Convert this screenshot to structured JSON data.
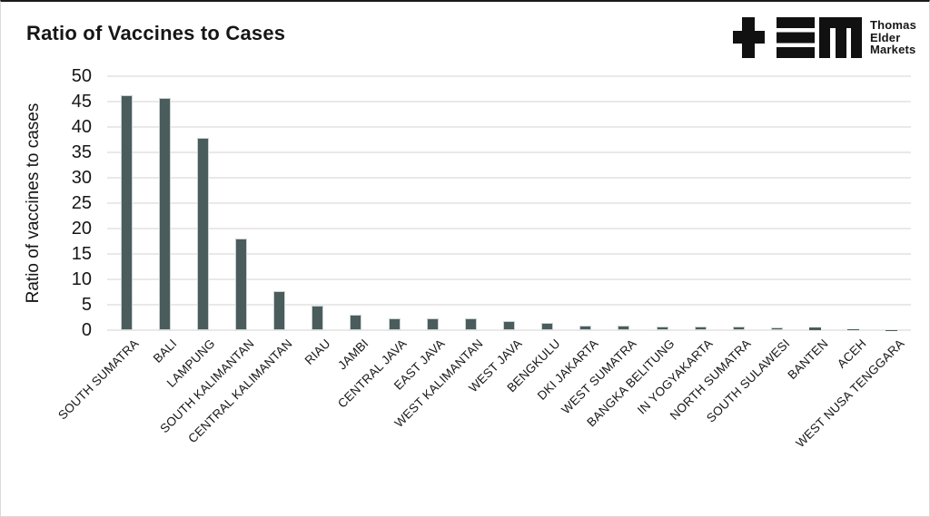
{
  "header": {
    "title": "Ratio of Vaccines to Cases"
  },
  "logo": {
    "name": "Thomas Elder Markets",
    "lines": [
      "Thomas",
      "Elder",
      "Markets"
    ]
  },
  "colors": {
    "bar": "#4a5c5b",
    "bar_edge": "#c9d2d1",
    "grid": "#e9e9e9",
    "text": "#161616"
  },
  "chart_data": {
    "type": "bar",
    "title": "Ratio of Vaccines to Cases",
    "xlabel": "",
    "ylabel": "Ratio of vaccines to cases",
    "ylim": [
      0,
      50
    ],
    "yticks": [
      0,
      5,
      10,
      15,
      20,
      25,
      30,
      35,
      40,
      45,
      50
    ],
    "grid": "horizontal",
    "legend": "none",
    "categories": [
      "SOUTH SUMATRA",
      "BALI",
      "LAMPUNG",
      "SOUTH KALIMANTAN",
      "CENTRAL KALIMANTAN",
      "RIAU",
      "JAMBI",
      "CENTRAL JAVA",
      "EAST JAVA",
      "WEST KALIMANTAN",
      "WEST JAVA",
      "BENGKULU",
      "DKI JAKARTA",
      "WEST SUMATRA",
      "BANGKA BELITUNG",
      "IN YOGYAKARTA",
      "NORTH SUMATRA",
      "SOUTH SULAWESI",
      "BANTEN",
      "ACEH",
      "WEST NUSA TENGGARA"
    ],
    "values": [
      46.2,
      45.7,
      37.8,
      18.0,
      7.7,
      4.9,
      3.0,
      2.4,
      2.4,
      2.4,
      1.7,
      1.5,
      0.9,
      0.9,
      0.8,
      0.75,
      0.75,
      0.55,
      0.5,
      0.1,
      0.05
    ]
  }
}
